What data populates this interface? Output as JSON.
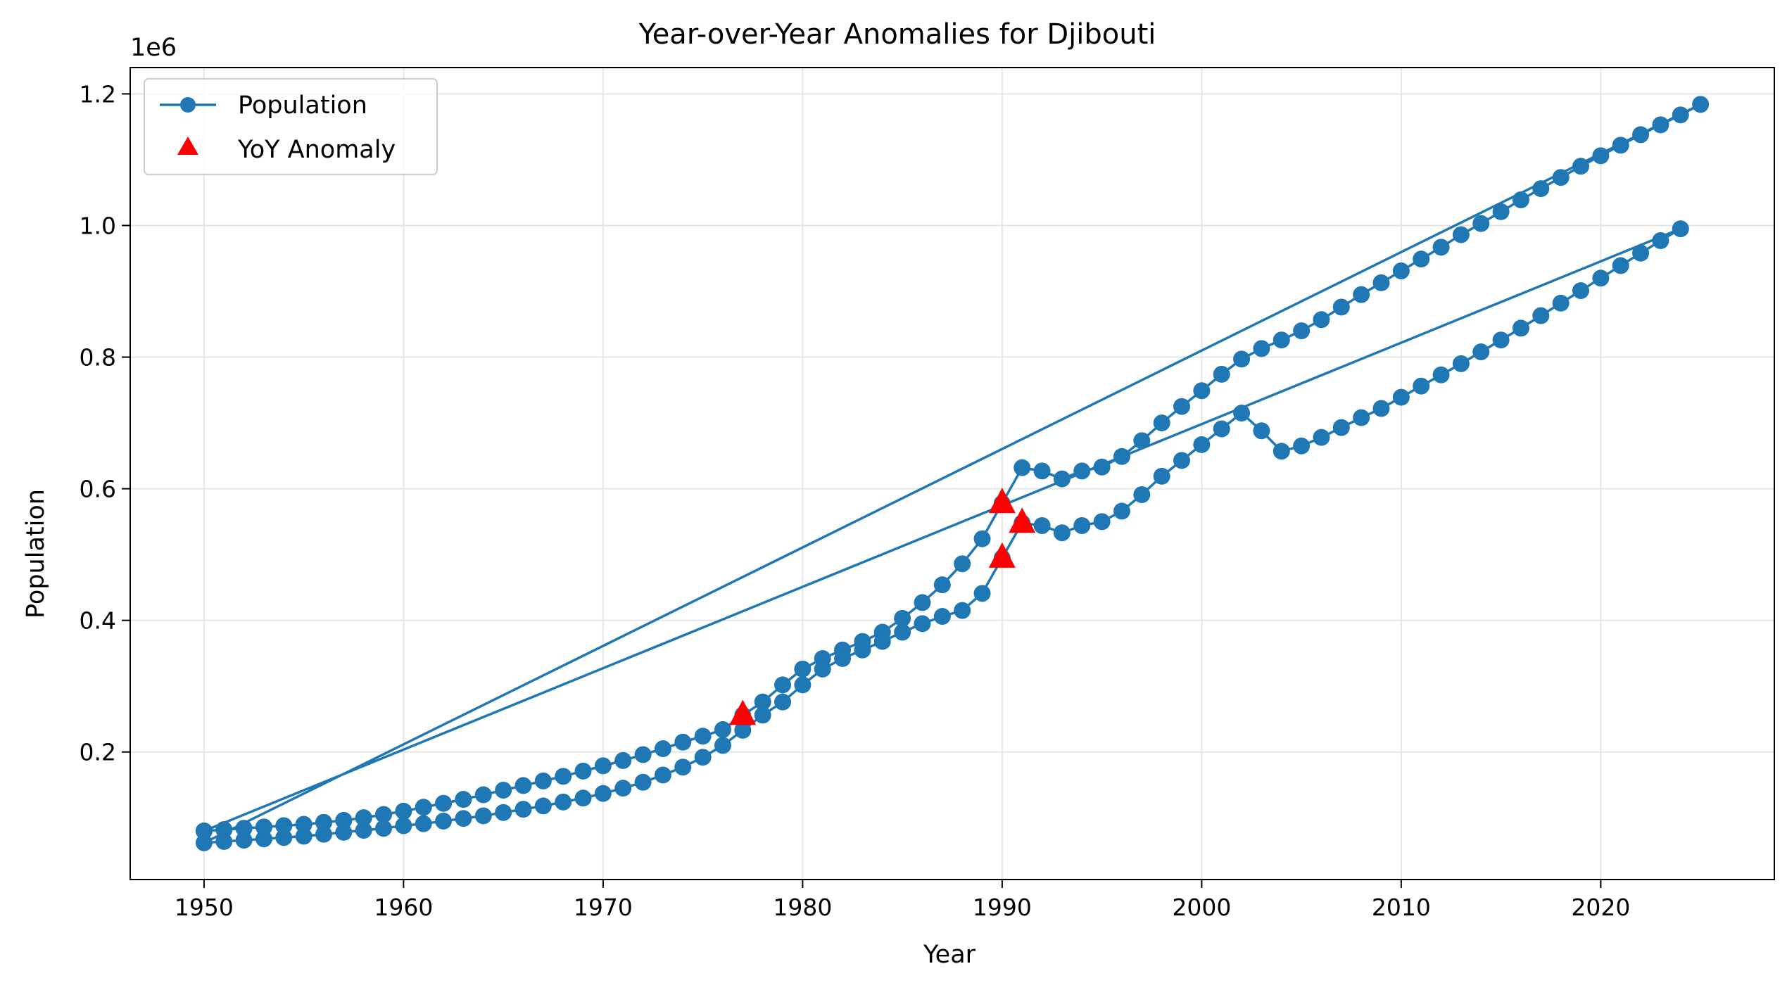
{
  "chart_data": {
    "type": "line",
    "title": "Year-over-Year Anomalies for Djibouti",
    "xlabel": "Year",
    "ylabel": "Population",
    "y_offset_label": "1e6",
    "xlim": [
      1946.3,
      1928.7
    ],
    "ylim": [
      6.2,
      11.7
    ],
    "grid": true,
    "legend_position": "top-left",
    "x_ticks": [
      1950,
      1960,
      1970,
      1980,
      1990,
      2000,
      2010,
      2020
    ],
    "y_ticks": [
      0.2,
      0.4,
      0.6,
      0.8,
      1.0,
      1.2
    ],
    "y_tick_labels": [
      "0.2",
      "0.4",
      "0.6",
      "0.8",
      "1.0",
      "1.2"
    ],
    "colors": {
      "line": "#1f77b4",
      "anomaly": "#ff0000",
      "grid": "#e6e6e6"
    },
    "series": [
      {
        "name": "Population",
        "marker": "circle",
        "points": [
          [
            1950,
            80000
          ],
          [
            1951,
            82000
          ],
          [
            1952,
            84000
          ],
          [
            1953,
            86000
          ],
          [
            1954,
            88000
          ],
          [
            1955,
            90000
          ],
          [
            1956,
            93000
          ],
          [
            1957,
            96000
          ],
          [
            1958,
            100000
          ],
          [
            1959,
            105000
          ],
          [
            1960,
            110000
          ],
          [
            1961,
            116000
          ],
          [
            1962,
            122000
          ],
          [
            1963,
            128000
          ],
          [
            1964,
            135000
          ],
          [
            1965,
            142000
          ],
          [
            1966,
            149000
          ],
          [
            1967,
            156000
          ],
          [
            1968,
            163000
          ],
          [
            1969,
            171000
          ],
          [
            1970,
            179000
          ],
          [
            1971,
            187000
          ],
          [
            1972,
            196000
          ],
          [
            1973,
            205000
          ],
          [
            1974,
            215000
          ],
          [
            1975,
            224000
          ],
          [
            1976,
            234000
          ],
          [
            1977,
            256000
          ],
          [
            1978,
            276000
          ],
          [
            1979,
            302000
          ],
          [
            1980,
            326000
          ],
          [
            1981,
            342000
          ],
          [
            1982,
            355000
          ],
          [
            1983,
            368000
          ],
          [
            1984,
            382000
          ],
          [
            1985,
            403000
          ],
          [
            1986,
            427000
          ],
          [
            1987,
            454000
          ],
          [
            1988,
            486000
          ],
          [
            1989,
            524000
          ],
          [
            1990,
            578000
          ],
          [
            1991,
            632000
          ],
          [
            1992,
            627000
          ],
          [
            1993,
            615000
          ],
          [
            1994,
            627000
          ],
          [
            1995,
            633000
          ],
          [
            1996,
            649000
          ],
          [
            1997,
            673000
          ],
          [
            1998,
            700000
          ],
          [
            1999,
            725000
          ],
          [
            2000,
            749000
          ],
          [
            2001,
            774000
          ],
          [
            2002,
            797000
          ],
          [
            2003,
            813000
          ],
          [
            2004,
            826000
          ],
          [
            2005,
            840000
          ],
          [
            2006,
            857000
          ],
          [
            2007,
            876000
          ],
          [
            2008,
            895000
          ],
          [
            2009,
            913000
          ],
          [
            2010,
            931000
          ],
          [
            2011,
            949000
          ],
          [
            2012,
            967000
          ],
          [
            2013,
            986000
          ],
          [
            2014,
            1003000
          ],
          [
            2015,
            1021000
          ],
          [
            2016,
            1039000
          ],
          [
            2017,
            1056000
          ],
          [
            2018,
            1073000
          ],
          [
            2019,
            1090000
          ],
          [
            2020,
            1106000
          ],
          [
            2021,
            1122000
          ],
          [
            2022,
            1138000
          ],
          [
            2023,
            1153000
          ],
          [
            2024,
            1168000
          ],
          [
            2025,
            1184000
          ],
          [
            1950,
            62000
          ],
          [
            1951,
            64000
          ],
          [
            1952,
            66000
          ],
          [
            1953,
            68000
          ],
          [
            1954,
            70000
          ],
          [
            1955,
            72000
          ],
          [
            1956,
            75000
          ],
          [
            1957,
            78000
          ],
          [
            1958,
            81000
          ],
          [
            1959,
            84000
          ],
          [
            1960,
            88000
          ],
          [
            1961,
            91000
          ],
          [
            1962,
            95000
          ],
          [
            1963,
            99000
          ],
          [
            1964,
            103000
          ],
          [
            1965,
            108000
          ],
          [
            1966,
            113000
          ],
          [
            1967,
            118000
          ],
          [
            1968,
            124000
          ],
          [
            1969,
            130000
          ],
          [
            1970,
            137000
          ],
          [
            1971,
            145000
          ],
          [
            1972,
            154000
          ],
          [
            1973,
            165000
          ],
          [
            1974,
            177000
          ],
          [
            1975,
            192000
          ],
          [
            1976,
            210000
          ],
          [
            1977,
            233000
          ],
          [
            1978,
            256000
          ],
          [
            1979,
            276000
          ],
          [
            1980,
            302000
          ],
          [
            1981,
            326000
          ],
          [
            1982,
            342000
          ],
          [
            1983,
            355000
          ],
          [
            1984,
            368000
          ],
          [
            1985,
            382000
          ],
          [
            1986,
            395000
          ],
          [
            1987,
            406000
          ],
          [
            1988,
            415000
          ],
          [
            1989,
            441000
          ],
          [
            1990,
            495000
          ],
          [
            1991,
            548000
          ],
          [
            1992,
            544000
          ],
          [
            1993,
            533000
          ],
          [
            1994,
            544000
          ],
          [
            1995,
            550000
          ],
          [
            1996,
            566000
          ],
          [
            1997,
            591000
          ],
          [
            1998,
            619000
          ],
          [
            1999,
            643000
          ],
          [
            2000,
            667000
          ],
          [
            2001,
            691000
          ],
          [
            2002,
            715000
          ],
          [
            2003,
            688000
          ],
          [
            2004,
            657000
          ],
          [
            2005,
            665000
          ],
          [
            2006,
            678000
          ],
          [
            2007,
            693000
          ],
          [
            2008,
            708000
          ],
          [
            2009,
            722000
          ],
          [
            2010,
            739000
          ],
          [
            2011,
            756000
          ],
          [
            2012,
            773000
          ],
          [
            2013,
            790000
          ],
          [
            2014,
            808000
          ],
          [
            2015,
            826000
          ],
          [
            2016,
            844000
          ],
          [
            2017,
            863000
          ],
          [
            2018,
            882000
          ],
          [
            2019,
            901000
          ],
          [
            2020,
            920000
          ],
          [
            2021,
            939000
          ],
          [
            2022,
            958000
          ],
          [
            2023,
            977000
          ],
          [
            2024,
            995000
          ],
          [
            1950,
            80000
          ],
          [
            1951,
            82000
          ],
          [
            1952,
            84000
          ],
          [
            1953,
            86000
          ],
          [
            1954,
            88000
          ],
          [
            1955,
            90000
          ],
          [
            1956,
            93000
          ],
          [
            1957,
            96000
          ],
          [
            1958,
            100000
          ],
          [
            1959,
            105000
          ],
          [
            1960,
            110000
          ],
          [
            1961,
            116000
          ],
          [
            1962,
            122000
          ],
          [
            1963,
            128000
          ]
        ]
      },
      {
        "name": "YoY Anomaly",
        "marker": "triangle",
        "points": [
          [
            1977,
            256000
          ],
          [
            1990,
            578000
          ],
          [
            1990,
            495000
          ],
          [
            1991,
            548000
          ]
        ]
      }
    ]
  }
}
